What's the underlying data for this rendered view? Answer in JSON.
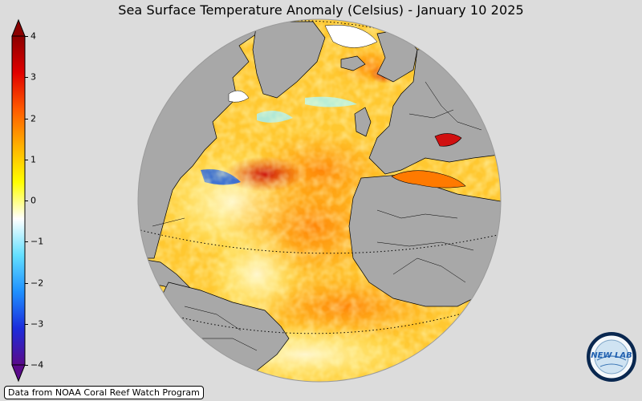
{
  "title": "Sea Surface Temperature Anomaly (Celsius) - January 10 2025",
  "colorbar": {
    "unit": "Celsius",
    "min": -4,
    "max": 4,
    "extend": "both",
    "ticks": [
      "4",
      "3",
      "2",
      "1",
      "0",
      "−1",
      "−2",
      "−3",
      "−4"
    ],
    "stops": [
      "#5a0a8a",
      "#1c2cdc",
      "#1e90ff",
      "#64e0ff",
      "#ffffff",
      "#ffff00",
      "#ffb000",
      "#ff5a00",
      "#e00000",
      "#8b0000"
    ]
  },
  "map": {
    "projection": "orthographic",
    "land_color": "#a8a8a8",
    "ocean_color": "#ffc830",
    "background_color": "#dcdcdc"
  },
  "credit": "Data from NOAA Coral Reef Watch Program",
  "logo_text": "NEW LAB"
}
